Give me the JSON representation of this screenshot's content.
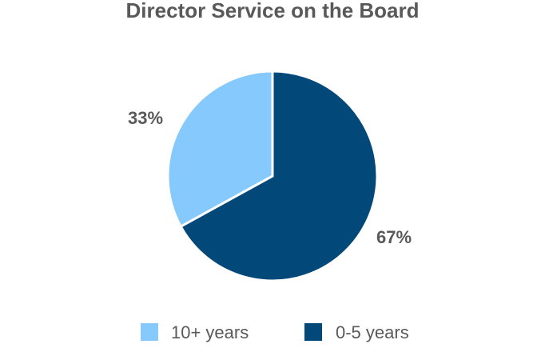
{
  "chart_data": {
    "type": "pie",
    "title": "Director Service on the Board",
    "categories": [
      "10+ years",
      "0-5 years"
    ],
    "values": [
      33,
      67
    ],
    "value_labels": [
      "33%",
      "67%"
    ],
    "colors": [
      "#85C9FD",
      "#024879"
    ],
    "legend_position": "bottom"
  }
}
